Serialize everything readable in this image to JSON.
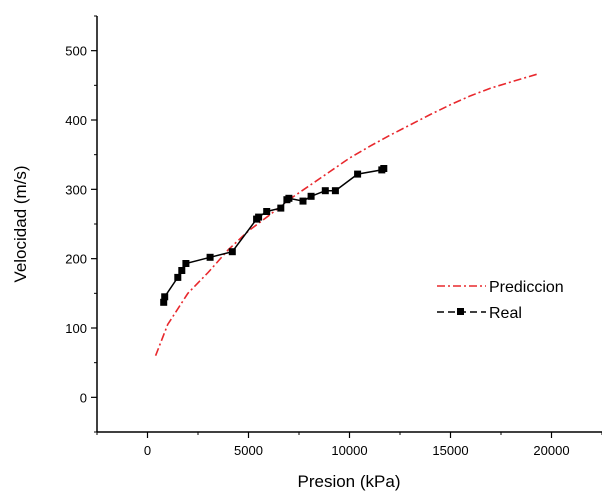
{
  "chart_data": {
    "type": "line",
    "xlabel": "Presion (kPa)",
    "ylabel": "Velocidad (m/s)",
    "xlim": [
      -2500,
      22500
    ],
    "ylim": [
      -50,
      550
    ],
    "x_ticks": [
      "0",
      "5000",
      "10000",
      "15000",
      "20000"
    ],
    "y_ticks": [
      "0",
      "100",
      "200",
      "300",
      "400",
      "500"
    ],
    "legend_position": "right",
    "series": [
      {
        "name": "Prediccion",
        "style": "dash-dot",
        "color": "#e8282d",
        "x": [
          400,
          1000,
          2000,
          3000,
          4000,
          5000,
          6000,
          7000,
          8000,
          9000,
          10000,
          11000,
          12000,
          13000,
          14000,
          15000,
          16000,
          17000,
          18000,
          19400
        ],
        "y": [
          60,
          105,
          150,
          180,
          213,
          240,
          262,
          285,
          305,
          325,
          345,
          362,
          378,
          393,
          408,
          422,
          435,
          446,
          455,
          467
        ]
      },
      {
        "name": "Real",
        "style": "solid-square",
        "color": "#000000",
        "x": [
          800,
          850,
          1500,
          1700,
          1900,
          3100,
          4200,
          5400,
          5500,
          5900,
          6600,
          6900,
          7000,
          7700,
          8100,
          8800,
          9300,
          10400,
          11600,
          11700
        ],
        "y": [
          137,
          145,
          173,
          183,
          193,
          202,
          210,
          257,
          260,
          268,
          273,
          285,
          287,
          283,
          290,
          298,
          298,
          322,
          328,
          330
        ]
      }
    ]
  }
}
